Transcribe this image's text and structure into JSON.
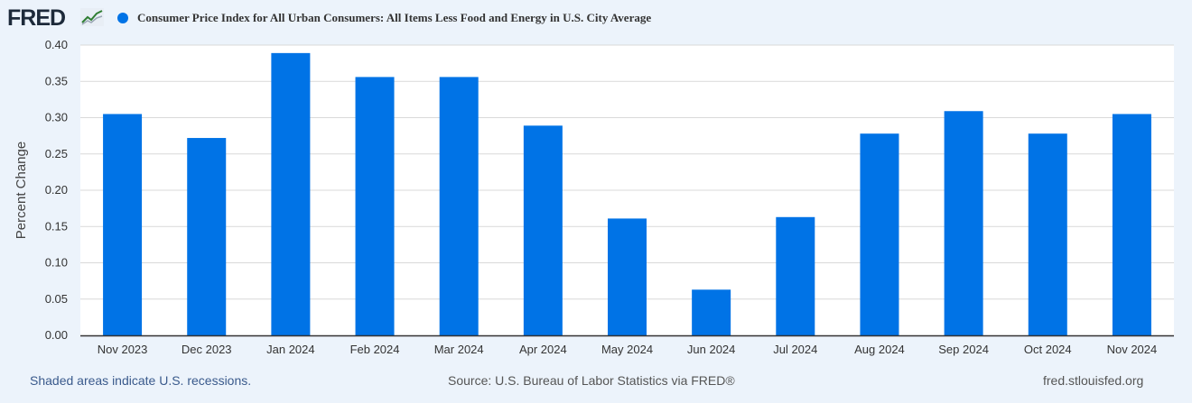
{
  "header": {
    "logo_text": "FRED",
    "logo_graph_icon": "trend-line-icon"
  },
  "colors": {
    "bar": "#0073e6",
    "plot_bg": "#ffffff",
    "page_bg": "#ecf3fb",
    "grid": "#d9d9d9",
    "axis_text": "#333333"
  },
  "chart_data": {
    "type": "bar",
    "title": "",
    "ylabel": "Percent Change",
    "xlabel": "",
    "legend": {
      "placement": "top-left",
      "entries": [
        "Consumer Price Index for All Urban Consumers: All Items Less Food and Energy in U.S. City Average"
      ]
    },
    "grid": true,
    "ylim": [
      0,
      0.4
    ],
    "yticks": [
      "0.00",
      "0.05",
      "0.10",
      "0.15",
      "0.20",
      "0.25",
      "0.30",
      "0.35",
      "0.40"
    ],
    "categories": [
      "Nov 2023",
      "Dec 2023",
      "Jan 2024",
      "Feb 2024",
      "Mar 2024",
      "Apr 2024",
      "May 2024",
      "Jun 2024",
      "Jul 2024",
      "Aug 2024",
      "Sep 2024",
      "Oct 2024",
      "Nov 2024"
    ],
    "series": [
      {
        "name": "Consumer Price Index for All Urban Consumers: All Items Less Food and Energy in U.S. City Average",
        "values": [
          0.305,
          0.272,
          0.389,
          0.356,
          0.356,
          0.289,
          0.161,
          0.063,
          0.163,
          0.278,
          0.309,
          0.278,
          0.305
        ]
      }
    ]
  },
  "footer": {
    "left": "Shaded areas indicate U.S. recessions.",
    "center": "Source: U.S. Bureau of Labor Statistics via FRED®",
    "right": "fred.stlouisfed.org"
  }
}
